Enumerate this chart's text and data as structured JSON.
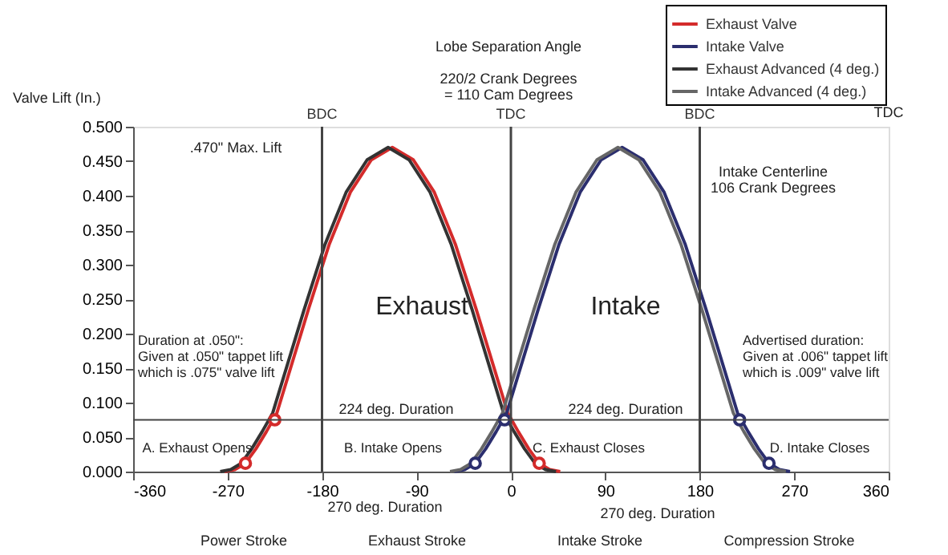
{
  "chart_data": {
    "type": "line",
    "ylabel": "Valve Lift (In.)",
    "xlim": [
      -360,
      360
    ],
    "xticks": [
      -360,
      -270,
      -180,
      -90,
      0,
      90,
      180,
      270,
      360
    ],
    "ylim": [
      0,
      0.5
    ],
    "yticks": [
      {
        "value": 0,
        "label": "0.000"
      },
      {
        "value": 0.05,
        "label": "0.050"
      },
      {
        "value": 0.1,
        "label": "0.100"
      },
      {
        "value": 0.15,
        "label": "0.150"
      },
      {
        "value": 0.2,
        "label": "0.200"
      },
      {
        "value": 0.25,
        "label": "0.250"
      },
      {
        "value": 0.3,
        "label": "0.300"
      },
      {
        "value": 0.35,
        "label": "0.350"
      },
      {
        "value": 0.4,
        "label": "0.400"
      },
      {
        "value": 0.45,
        "label": "0.450"
      },
      {
        "value": 0.5,
        "label": "0.500"
      }
    ],
    "grid": false,
    "legend": "top right",
    "marker": "none",
    "line_style": "solid",
    "series": [
      {
        "name": "Exhaust Valve",
        "color": "#d42b2b",
        "x": [
          -273,
          -263,
          -253,
          -243,
          -233,
          -223,
          -213,
          -193,
          -173,
          -153,
          -133,
          -113,
          -93,
          -73,
          -53,
          -33,
          -13,
          -3,
          7,
          17,
          27,
          37,
          47
        ],
        "values": [
          0,
          0.003,
          0.012,
          0.033,
          0.058,
          0.085,
          0.135,
          0.235,
          0.33,
          0.405,
          0.452,
          0.47,
          0.452,
          0.405,
          0.33,
          0.235,
          0.135,
          0.085,
          0.058,
          0.033,
          0.012,
          0.003,
          0
        ]
      },
      {
        "name": "Intake Valve",
        "color": "#2b2e6e",
        "x": [
          -54,
          -44,
          -34,
          -24,
          -14,
          -4,
          6,
          26,
          46,
          66,
          86,
          106,
          126,
          146,
          166,
          186,
          206,
          216,
          226,
          236,
          246,
          256,
          266
        ],
        "values": [
          0,
          0.003,
          0.012,
          0.033,
          0.058,
          0.085,
          0.135,
          0.235,
          0.33,
          0.405,
          0.452,
          0.47,
          0.452,
          0.405,
          0.33,
          0.235,
          0.135,
          0.085,
          0.058,
          0.033,
          0.012,
          0.003,
          0
        ]
      },
      {
        "name": "Exhaust Advanced (4 deg.)",
        "color": "#333333",
        "x": [
          -277,
          -267,
          -257,
          -247,
          -237,
          -227,
          -217,
          -197,
          -177,
          -157,
          -137,
          -117,
          -97,
          -77,
          -57,
          -37,
          -17,
          -7,
          3,
          13,
          23,
          33,
          43
        ],
        "values": [
          0,
          0.003,
          0.012,
          0.033,
          0.058,
          0.085,
          0.135,
          0.235,
          0.33,
          0.405,
          0.452,
          0.47,
          0.452,
          0.405,
          0.33,
          0.235,
          0.135,
          0.085,
          0.058,
          0.033,
          0.012,
          0.003,
          0
        ]
      },
      {
        "name": "Intake Advanced (4 deg.)",
        "color": "#666666",
        "x": [
          -58,
          -48,
          -38,
          -28,
          -18,
          -8,
          2,
          22,
          42,
          62,
          82,
          102,
          122,
          142,
          162,
          182,
          202,
          212,
          222,
          232,
          242,
          252,
          262
        ],
        "values": [
          0,
          0.003,
          0.012,
          0.033,
          0.058,
          0.085,
          0.135,
          0.235,
          0.33,
          0.405,
          0.452,
          0.47,
          0.452,
          0.405,
          0.33,
          0.235,
          0.135,
          0.085,
          0.058,
          0.033,
          0.012,
          0.003,
          0
        ]
      },
      {
        "type": "scatter",
        "marker": "circle",
        "color": "#d42b2b",
        "x": [
          -253,
          -225,
          27
        ],
        "values": [
          0.012,
          0.075,
          0.012
        ]
      },
      {
        "type": "scatter",
        "marker": "circle",
        "color": "#2b2e6e",
        "x": [
          -34,
          -6,
          218,
          246
        ],
        "values": [
          0.012,
          0.075,
          0.075,
          0.012
        ]
      }
    ],
    "ref_lines": [
      {
        "axis": "x",
        "value": -180,
        "label": "BDC",
        "color": "#444444"
      },
      {
        "axis": "x",
        "value": 0,
        "label": "TDC",
        "color": "#444444"
      },
      {
        "axis": "x",
        "value": 180,
        "label": "BDC",
        "color": "#444444"
      },
      {
        "axis": "y",
        "value": 0.075,
        "color": "#444444"
      }
    ],
    "annotations": [
      ".470\" Max. Lift",
      "Intake Centerline\n106 Crank Degrees",
      "Exhaust",
      "Intake",
      "Duration at .050\":\nGiven at .050\" tappet lift\nwhich is .075\" valve lift",
      "Advertised duration:\nGiven at .006\" tappet lift\nwhich is .009\" valve lift",
      "224 deg. Duration",
      "224 deg. Duration",
      "A. Exhaust Opens",
      "B. Intake Opens",
      "C. Exhaust Closes",
      "D. Intake Closes",
      "Lobe Separation Angle",
      "220/2 Crank Degrees\n= 110 Cam Degrees",
      "270 deg. Duration",
      "270 deg. Duration",
      "Power Stroke",
      "Exhaust Stroke",
      "Intake Stroke",
      "Compression Stroke",
      "TDC"
    ]
  }
}
